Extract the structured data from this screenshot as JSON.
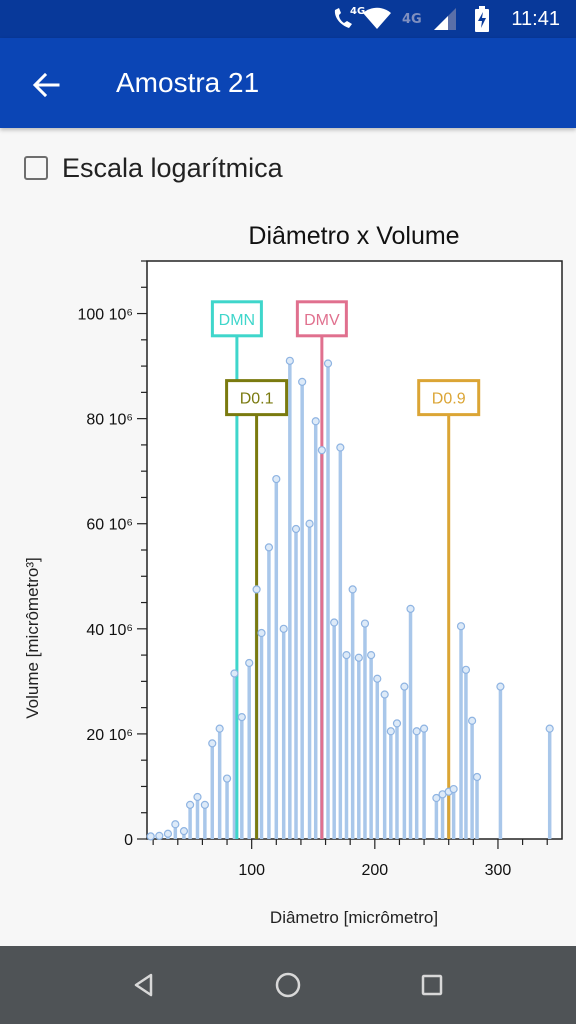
{
  "status_bar": {
    "time": "11:41",
    "call_badge": "4G",
    "network_label": "4G",
    "icons": [
      "wifi-calling-icon",
      "wifi-icon",
      "signal-icon",
      "battery-charging-icon"
    ]
  },
  "app_bar": {
    "title": "Amostra 21",
    "back_icon": "arrow-back-icon"
  },
  "log_scale": {
    "label": "Escala logarítmica",
    "checked": false
  },
  "chart_data": {
    "type": "bar",
    "title": "Diâmetro x Volume",
    "xlabel": "Diâmetro [micrômetro]",
    "ylabel": "Volume [micrômetro³]",
    "xlim": [
      15,
      352
    ],
    "ylim": [
      0,
      110
    ],
    "x_ticks": [
      100,
      200,
      300
    ],
    "y_ticks": [
      0,
      20,
      40,
      60,
      80,
      100
    ],
    "y_tick_labels": [
      "0",
      "20 10⁶",
      "40 10⁶",
      "60 10⁶",
      "80 10⁶",
      "100 10⁶"
    ],
    "bar_color": "#a9c7ea",
    "points": [
      [
        18,
        0.5
      ],
      [
        25,
        0.6
      ],
      [
        32,
        1.0
      ],
      [
        38,
        2.8
      ],
      [
        45,
        1.5
      ],
      [
        50,
        6.5
      ],
      [
        56,
        8.0
      ],
      [
        62,
        6.5
      ],
      [
        68,
        18.2
      ],
      [
        74,
        21.0
      ],
      [
        80,
        11.5
      ],
      [
        86,
        31.5
      ],
      [
        92,
        23.2
      ],
      [
        98,
        33.5
      ],
      [
        104,
        47.5
      ],
      [
        108,
        39.2
      ],
      [
        114,
        55.5
      ],
      [
        120,
        68.5
      ],
      [
        126,
        40.0
      ],
      [
        131,
        91.0
      ],
      [
        136,
        59.0
      ],
      [
        141,
        87.0
      ],
      [
        147,
        60.0
      ],
      [
        152,
        79.5
      ],
      [
        157,
        74.0
      ],
      [
        162,
        90.5
      ],
      [
        167,
        41.2
      ],
      [
        172,
        74.5
      ],
      [
        177,
        35.0
      ],
      [
        182,
        47.5
      ],
      [
        187,
        34.5
      ],
      [
        192,
        41.0
      ],
      [
        197,
        35.0
      ],
      [
        202,
        30.5
      ],
      [
        208,
        27.5
      ],
      [
        213,
        20.5
      ],
      [
        218,
        22.0
      ],
      [
        224,
        29.0
      ],
      [
        229,
        43.8
      ],
      [
        234,
        20.5
      ],
      [
        240,
        21.0
      ],
      [
        250,
        7.8
      ],
      [
        255,
        8.5
      ],
      [
        260,
        9.0
      ],
      [
        264,
        9.5
      ],
      [
        270,
        40.5
      ],
      [
        274,
        32.2
      ],
      [
        279,
        22.5
      ],
      [
        283,
        11.8
      ],
      [
        302,
        29.0
      ],
      [
        342,
        21.0
      ]
    ],
    "markers": [
      {
        "label": "DMN",
        "x": 88,
        "color": "#3fd6cb",
        "label_y": 99
      },
      {
        "label": "D0.1",
        "x": 104,
        "color": "#7a7a0f",
        "label_y": 84
      },
      {
        "label": "DMV",
        "x": 157,
        "color": "#e0708e",
        "label_y": 99
      },
      {
        "label": "D0.9",
        "x": 260,
        "color": "#dba535",
        "label_y": 84
      }
    ]
  },
  "nav_bar": {
    "buttons": [
      "back-triangle-icon",
      "home-circle-icon",
      "recents-square-icon"
    ]
  }
}
